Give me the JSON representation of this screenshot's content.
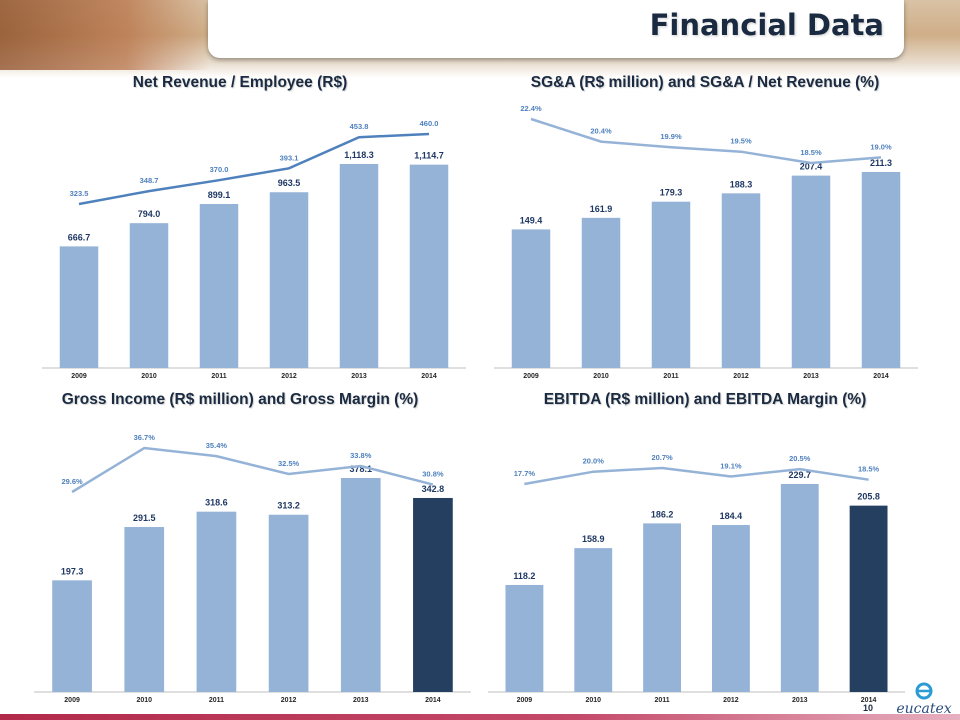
{
  "header": {
    "title": "Financial Data"
  },
  "footer": {
    "page_number": "10",
    "logo_text": "eucatex"
  },
  "colors": {
    "bar": "#95b3d7",
    "bar_highlight": "#243f60",
    "line_dark": "#4f81bd",
    "line_light": "#95b3d7",
    "label": "#1f3864"
  },
  "chart_data": [
    {
      "type": "bar",
      "title": "Net Revenue / Employee (R$)",
      "categories": [
        "2009",
        "2010",
        "2011",
        "2012",
        "2013",
        "2014"
      ],
      "bar_values": [
        666.7,
        794.0,
        899.1,
        963.5,
        1118.3,
        1114.7
      ],
      "bar_labels": [
        "666.7",
        "794.0",
        "899.1",
        "963.5",
        "1,118.3",
        "1,114.7"
      ],
      "line_values": [
        323.5,
        348.7,
        370.0,
        393.1,
        453.8,
        460.0
      ],
      "line_labels": [
        "323.5",
        "348.7",
        "370.0",
        "393.1",
        "453.8",
        "460.0"
      ],
      "highlight_last": false
    },
    {
      "type": "bar",
      "title": "SG&A (R$ million) and SG&A / Net Revenue (%)",
      "categories": [
        "2009",
        "2010",
        "2011",
        "2012",
        "2013",
        "2014"
      ],
      "bar_values": [
        149.4,
        161.9,
        179.3,
        188.3,
        207.4,
        211.3
      ],
      "bar_labels": [
        "149.4",
        "161.9",
        "179.3",
        "188.3",
        "207.4",
        "211.3"
      ],
      "line_values": [
        22.4,
        20.4,
        19.9,
        19.5,
        18.5,
        19.0
      ],
      "line_labels": [
        "22.4%",
        "20.4%",
        "19.9%",
        "19.5%",
        "18.5%",
        "19.0%"
      ],
      "highlight_last": false
    },
    {
      "type": "bar",
      "title": "Gross Income (R$ million) and Gross Margin (%)",
      "categories": [
        "2009",
        "2010",
        "2011",
        "2012",
        "2013",
        "2014"
      ],
      "bar_values": [
        197.3,
        291.5,
        318.6,
        313.2,
        378.1,
        342.8
      ],
      "bar_labels": [
        "197.3",
        "291.5",
        "318.6",
        "313.2",
        "378.1",
        "342.8"
      ],
      "line_values": [
        29.6,
        36.7,
        35.4,
        32.5,
        33.8,
        30.8
      ],
      "line_labels": [
        "29.6%",
        "36.7%",
        "35.4%",
        "32.5%",
        "33.8%",
        "30.8%"
      ],
      "highlight_last": true
    },
    {
      "type": "bar",
      "title": "EBITDA (R$ million) and EBITDA Margin (%)",
      "categories": [
        "2009",
        "2010",
        "2011",
        "2012",
        "2013",
        "2014"
      ],
      "bar_values": [
        118.2,
        158.9,
        186.2,
        184.4,
        229.7,
        205.8
      ],
      "bar_labels": [
        "118.2",
        "158.9",
        "186.2",
        "184.4",
        "229.7",
        "205.8"
      ],
      "line_values": [
        17.7,
        20.0,
        20.7,
        19.1,
        20.5,
        18.5
      ],
      "line_labels": [
        "17.7%",
        "20.0%",
        "20.7%",
        "19.1%",
        "20.5%",
        "18.5%"
      ],
      "highlight_last": true
    }
  ]
}
